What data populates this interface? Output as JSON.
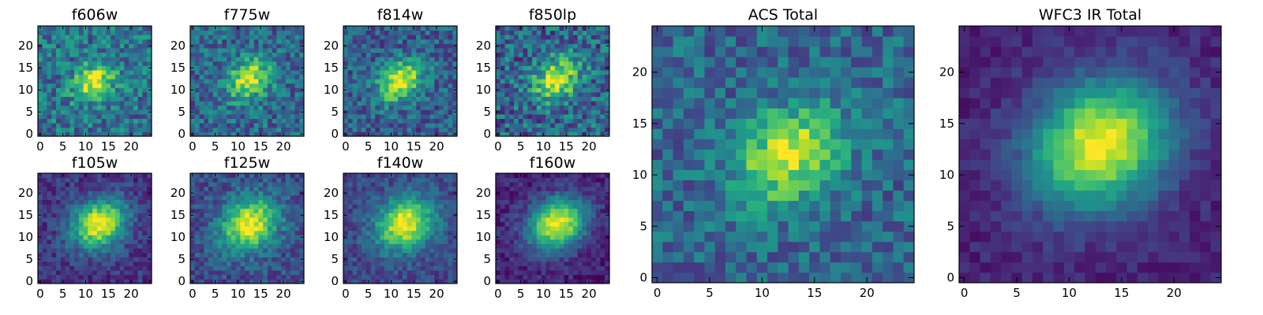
{
  "figure": {
    "background": "#ffffff"
  },
  "chart_data": [
    {
      "type": "heatmap",
      "title": "f606w",
      "grid": [
        25,
        25
      ],
      "xlim": [
        -0.5,
        24.5
      ],
      "ylim": [
        -0.5,
        24.5
      ],
      "xticks": [
        0,
        5,
        10,
        15,
        20
      ],
      "yticks": [
        0,
        5,
        10,
        15,
        20
      ],
      "center": [
        12,
        12
      ],
      "sigma": [
        2.6,
        3.4
      ],
      "rotation": 40,
      "peak": 0.95,
      "background": 0.38,
      "noise": 0.22,
      "seed": 11,
      "colormap": "viridis"
    },
    {
      "type": "heatmap",
      "title": "f775w",
      "grid": [
        25,
        25
      ],
      "xlim": [
        -0.5,
        24.5
      ],
      "ylim": [
        -0.5,
        24.5
      ],
      "xticks": [
        0,
        5,
        10,
        15,
        20
      ],
      "yticks": [
        0,
        5,
        10,
        15,
        20
      ],
      "center": [
        12.5,
        12.5
      ],
      "sigma": [
        2.8,
        3.6
      ],
      "rotation": 40,
      "peak": 0.95,
      "background": 0.34,
      "noise": 0.2,
      "seed": 23,
      "colormap": "viridis"
    },
    {
      "type": "heatmap",
      "title": "f814w",
      "grid": [
        25,
        25
      ],
      "xlim": [
        -0.5,
        24.5
      ],
      "ylim": [
        -0.5,
        24.5
      ],
      "xticks": [
        0,
        5,
        10,
        15,
        20
      ],
      "yticks": [
        0,
        5,
        10,
        15,
        20
      ],
      "center": [
        12,
        12
      ],
      "sigma": [
        2.8,
        3.8
      ],
      "rotation": 40,
      "peak": 0.97,
      "background": 0.3,
      "noise": 0.19,
      "seed": 37,
      "colormap": "viridis"
    },
    {
      "type": "heatmap",
      "title": "f850lp",
      "grid": [
        25,
        25
      ],
      "xlim": [
        -0.5,
        24.5
      ],
      "ylim": [
        -0.5,
        24.5
      ],
      "xticks": [
        0,
        5,
        10,
        15,
        20
      ],
      "yticks": [
        0,
        5,
        10,
        15,
        20
      ],
      "center": [
        13,
        12.5
      ],
      "sigma": [
        3.0,
        3.8
      ],
      "rotation": 40,
      "peak": 0.95,
      "background": 0.32,
      "noise": 0.24,
      "seed": 41,
      "colormap": "viridis"
    },
    {
      "type": "heatmap",
      "title": "f105w",
      "grid": [
        25,
        25
      ],
      "xlim": [
        -0.5,
        24.5
      ],
      "ylim": [
        -0.5,
        24.5
      ],
      "xticks": [
        0,
        5,
        10,
        15,
        20
      ],
      "yticks": [
        0,
        5,
        10,
        15,
        20
      ],
      "center": [
        13,
        13
      ],
      "sigma": [
        3.6,
        4.4
      ],
      "rotation": 35,
      "peak": 1.0,
      "background": 0.16,
      "noise": 0.12,
      "seed": 53,
      "colormap": "viridis"
    },
    {
      "type": "heatmap",
      "title": "f125w",
      "grid": [
        25,
        25
      ],
      "xlim": [
        -0.5,
        24.5
      ],
      "ylim": [
        -0.5,
        24.5
      ],
      "xticks": [
        0,
        5,
        10,
        15,
        20
      ],
      "yticks": [
        0,
        5,
        10,
        15,
        20
      ],
      "center": [
        12.5,
        13
      ],
      "sigma": [
        3.8,
        4.6
      ],
      "rotation": 35,
      "peak": 1.0,
      "background": 0.24,
      "noise": 0.14,
      "seed": 67,
      "colormap": "viridis"
    },
    {
      "type": "heatmap",
      "title": "f140w",
      "grid": [
        25,
        25
      ],
      "xlim": [
        -0.5,
        24.5
      ],
      "ylim": [
        -0.5,
        24.5
      ],
      "xticks": [
        0,
        5,
        10,
        15,
        20
      ],
      "yticks": [
        0,
        5,
        10,
        15,
        20
      ],
      "center": [
        13,
        13
      ],
      "sigma": [
        3.8,
        4.6
      ],
      "rotation": 35,
      "peak": 1.0,
      "background": 0.22,
      "noise": 0.12,
      "seed": 79,
      "colormap": "viridis"
    },
    {
      "type": "heatmap",
      "title": "f160w",
      "grid": [
        25,
        25
      ],
      "xlim": [
        -0.5,
        24.5
      ],
      "ylim": [
        -0.5,
        24.5
      ],
      "xticks": [
        0,
        5,
        10,
        15,
        20
      ],
      "yticks": [
        0,
        5,
        10,
        15,
        20
      ],
      "center": [
        13,
        13
      ],
      "sigma": [
        3.8,
        4.6
      ],
      "rotation": 35,
      "peak": 1.0,
      "background": 0.1,
      "noise": 0.1,
      "seed": 83,
      "colormap": "viridis"
    },
    {
      "type": "heatmap",
      "title": "ACS Total",
      "grid": [
        25,
        25
      ],
      "xlim": [
        -0.5,
        24.5
      ],
      "ylim": [
        -0.5,
        24.5
      ],
      "xticks": [
        0,
        5,
        10,
        15,
        20
      ],
      "yticks": [
        0,
        5,
        10,
        15,
        20
      ],
      "center": [
        12.5,
        12
      ],
      "sigma": [
        2.8,
        3.8
      ],
      "rotation": 40,
      "peak": 0.95,
      "background": 0.33,
      "noise": 0.17,
      "seed": 97,
      "colormap": "viridis"
    },
    {
      "type": "heatmap",
      "title": "WFC3 IR Total",
      "grid": [
        25,
        25
      ],
      "xlim": [
        -0.5,
        24.5
      ],
      "ylim": [
        -0.5,
        24.5
      ],
      "xticks": [
        0,
        5,
        10,
        15,
        20
      ],
      "yticks": [
        0,
        5,
        10,
        15,
        20
      ],
      "center": [
        13,
        13
      ],
      "sigma": [
        4.0,
        4.8
      ],
      "rotation": 35,
      "peak": 1.0,
      "background": 0.1,
      "noise": 0.07,
      "seed": 101,
      "colormap": "viridis"
    }
  ]
}
